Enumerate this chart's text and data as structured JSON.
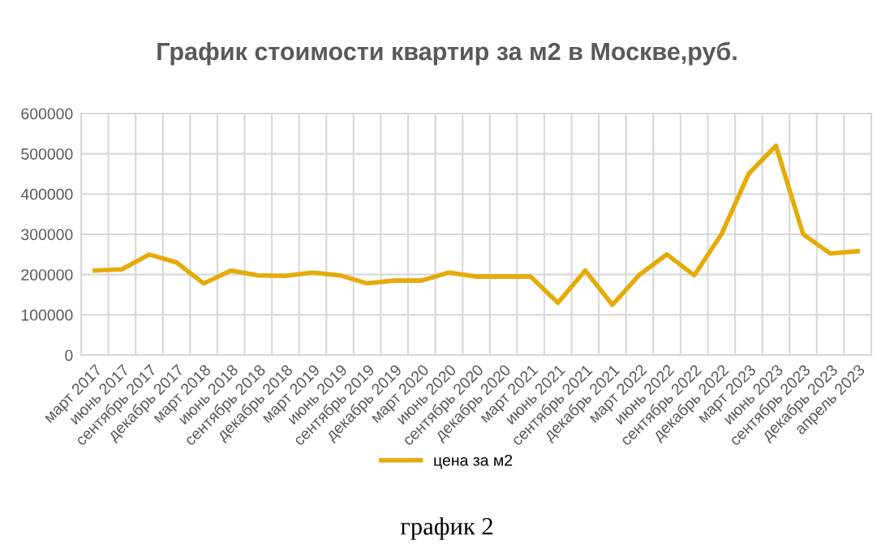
{
  "chart_data": {
    "type": "line",
    "title": "График стоимости квартир за м2 в Москве,руб.",
    "categories": [
      "март 2017",
      "июнь 2017",
      "сентябрь 2017",
      "декабрь 2017",
      "март 2018",
      "июнь 2018",
      "сентябрь 2018",
      "декабрь 2018",
      "март 2019",
      "июнь 2019",
      "сентябрь 2019",
      "декабрь 2019",
      "март 2020",
      "июнь 2020",
      "сентябрь 2020",
      "декабрь 2020",
      "март 2021",
      "июнь 2021",
      "сентябрь 2021",
      "декабрь 2021",
      "март 2022",
      "июнь 2022",
      "сентябрь 2022",
      "декабрь 2022",
      "март 2023",
      "июнь 2023",
      "сентябрь 2023",
      "декабрь 2023",
      "апрель 2023"
    ],
    "series": [
      {
        "name": "цена за м2",
        "color": "#e5ab09",
        "values": [
          210000,
          213000,
          250000,
          230000,
          178000,
          210000,
          198000,
          197000,
          205000,
          198000,
          178000,
          185000,
          185000,
          205000,
          195000,
          195000,
          195000,
          130000,
          210000,
          125000,
          200000,
          250000,
          198000,
          300000,
          450000,
          520000,
          300000,
          252000,
          258000
        ]
      }
    ],
    "ylim": [
      0,
      600000
    ],
    "yticks": [
      0,
      100000,
      200000,
      300000,
      400000,
      500000,
      600000
    ],
    "grid": true,
    "legend": "bottom",
    "marker": "none",
    "line_style": "solid",
    "annotations": [
      "график 2"
    ]
  }
}
